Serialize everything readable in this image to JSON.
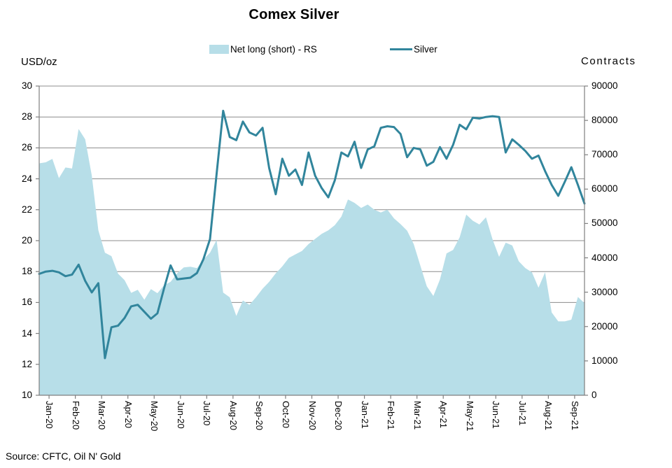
{
  "title": "Comex Silver",
  "source": "Source: CFTC, Oil N' Gold",
  "colors": {
    "area": "#b7dee8",
    "line": "#31859c",
    "grid": "#8c8c8c",
    "axis": "#7f7f7f",
    "text": "#000000"
  },
  "legend": {
    "area_label": "Net long (short) - RS",
    "line_label": "Silver"
  },
  "left_axis": {
    "title": "USD/oz",
    "ticks": [
      30,
      28,
      26,
      24,
      22,
      20,
      18,
      16,
      14,
      12,
      10
    ],
    "range": [
      10,
      30
    ]
  },
  "right_axis": {
    "title": "Contracts",
    "ticks": [
      90000,
      80000,
      70000,
      60000,
      50000,
      40000,
      30000,
      20000,
      10000,
      0
    ],
    "range": [
      0,
      90000
    ]
  },
  "chart_data": {
    "type": "area+line combo, weekly data",
    "categories": [
      "Jan-20",
      "Feb-20",
      "Mar-20",
      "Apr-20",
      "May-20",
      "Jun-20",
      "Jul-20",
      "Aug-20",
      "Sep-20",
      "Oct-20",
      "Nov-20",
      "Dec-20",
      "Jan-21",
      "Feb-21",
      "Mar-21",
      "Apr-21",
      "May-21",
      "Jun-21",
      "Jul-21",
      "Aug-21",
      "Sep-21"
    ],
    "points_per_month": 4,
    "grid": "horizontal",
    "legend_position": "top",
    "series": [
      {
        "name": "Net long (short) - RS",
        "type": "area",
        "axis": "right",
        "ylim": [
          0,
          90000
        ],
        "values": [
          67500,
          67800,
          68800,
          63200,
          66300,
          66000,
          77500,
          74500,
          64000,
          48000,
          41500,
          40500,
          35400,
          33500,
          29800,
          30700,
          27800,
          30900,
          29700,
          32000,
          33000,
          35500,
          37200,
          37400,
          37000,
          39500,
          41500,
          45200,
          29900,
          28500,
          23100,
          27600,
          26300,
          28500,
          31000,
          33000,
          35500,
          37500,
          40000,
          41000,
          42000,
          44000,
          45500,
          47000,
          48000,
          49500,
          52000,
          57000,
          56000,
          54500,
          55500,
          54000,
          53200,
          54000,
          51500,
          49800,
          47900,
          44000,
          37800,
          31700,
          28900,
          33700,
          41300,
          42300,
          46000,
          52600,
          50800,
          49700,
          51800,
          45400,
          40300,
          44400,
          43600,
          39000,
          37000,
          35800,
          31300,
          35800,
          24100,
          21500,
          21500,
          22000,
          28600,
          26800
        ]
      },
      {
        "name": "Silver",
        "type": "line",
        "axis": "left",
        "ylim": [
          10,
          30
        ],
        "values": [
          17.85,
          18.0,
          18.05,
          17.95,
          17.7,
          17.8,
          18.45,
          17.4,
          16.65,
          17.25,
          12.4,
          14.4,
          14.5,
          15.0,
          15.75,
          15.85,
          15.4,
          14.95,
          15.3,
          16.9,
          18.4,
          17.5,
          17.55,
          17.6,
          17.9,
          18.8,
          20.1,
          24.3,
          28.4,
          26.7,
          26.5,
          27.7,
          27.0,
          26.8,
          27.3,
          24.7,
          23.0,
          25.3,
          24.2,
          24.6,
          23.6,
          25.7,
          24.2,
          23.4,
          22.8,
          23.9,
          25.7,
          25.45,
          26.4,
          24.7,
          25.9,
          26.1,
          27.3,
          27.4,
          27.35,
          26.9,
          25.4,
          26.0,
          25.9,
          24.85,
          25.1,
          26.05,
          25.3,
          26.2,
          27.5,
          27.2,
          27.95,
          27.9,
          28.0,
          28.05,
          28.0,
          25.7,
          26.55,
          26.2,
          25.8,
          25.3,
          25.5,
          24.5,
          23.6,
          22.9,
          23.8,
          24.75,
          23.6,
          22.4
        ]
      }
    ]
  }
}
